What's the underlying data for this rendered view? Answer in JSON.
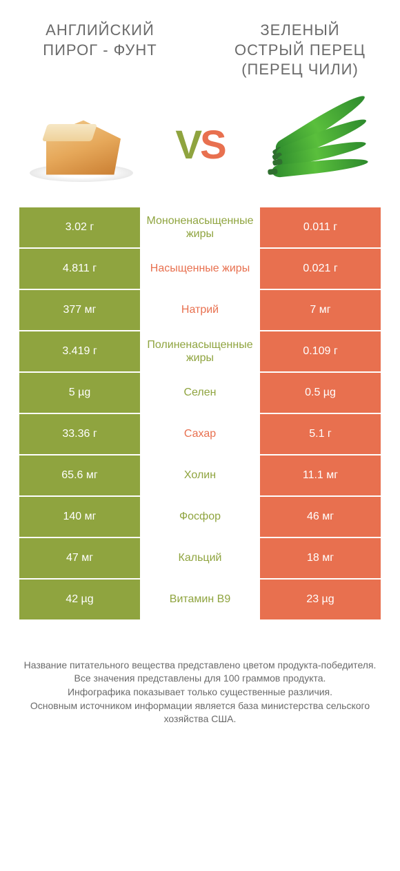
{
  "colors": {
    "left": "#8fa43f",
    "right": "#e8704f",
    "text": "#6a6a6a",
    "white": "#ffffff"
  },
  "header": {
    "left_title": "АНГЛИЙСКИЙ ПИРОГ - ФУНТ",
    "right_title": "ЗЕЛЕНЫЙ ОСТРЫЙ ПЕРЕЦ (ПЕРЕЦ ЧИЛИ)",
    "vs_label_left": "V",
    "vs_label_right": "S",
    "left_icon": "pound-cake",
    "right_icon": "green-chili-peppers"
  },
  "rows": [
    {
      "label": "Мононенасыщенные жиры",
      "winner": "left",
      "left": "3.02 г",
      "right": "0.011 г"
    },
    {
      "label": "Насыщенные жиры",
      "winner": "right",
      "left": "4.811 г",
      "right": "0.021 г"
    },
    {
      "label": "Натрий",
      "winner": "right",
      "left": "377 мг",
      "right": "7 мг"
    },
    {
      "label": "Полиненасыщенные жиры",
      "winner": "left",
      "left": "3.419 г",
      "right": "0.109 г"
    },
    {
      "label": "Селен",
      "winner": "left",
      "left": "5 µg",
      "right": "0.5 µg"
    },
    {
      "label": "Сахар",
      "winner": "right",
      "left": "33.36 г",
      "right": "5.1 г"
    },
    {
      "label": "Холин",
      "winner": "left",
      "left": "65.6 мг",
      "right": "11.1 мг"
    },
    {
      "label": "Фосфор",
      "winner": "left",
      "left": "140 мг",
      "right": "46 мг"
    },
    {
      "label": "Кальций",
      "winner": "left",
      "left": "47 мг",
      "right": "18 мг"
    },
    {
      "label": "Витамин B9",
      "winner": "left",
      "left": "42 µg",
      "right": "23 µg"
    }
  ],
  "footnotes": [
    "Название питательного вещества представлено цветом продукта-победителя.",
    "Все значения представлены для 100 граммов продукта.",
    "Инфографика показывает только существенные различия.",
    "Основным источником информации является база министерства сельского хозяйства США."
  ]
}
